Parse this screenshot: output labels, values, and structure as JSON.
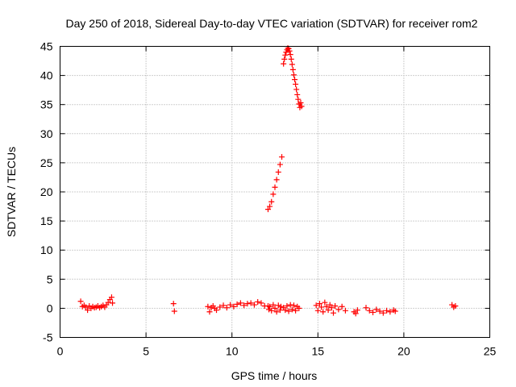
{
  "chart_data": {
    "type": "scatter",
    "title": "Day 250 of 2018, Sidereal Day-to-day VTEC variation (SDTVAR) for receiver rom2",
    "xlabel": "GPS time / hours",
    "ylabel": "SDTVAR / TECUs",
    "xlim": [
      0,
      25
    ],
    "ylim": [
      -5,
      45
    ],
    "xticks": [
      0,
      5,
      10,
      15,
      20,
      25
    ],
    "yticks": [
      -5,
      0,
      5,
      10,
      15,
      20,
      25,
      30,
      35,
      40,
      45
    ],
    "grid": true,
    "marker": "+",
    "series": [
      {
        "name": "SDTVAR",
        "color": "#ff0000",
        "x": [
          1.2,
          1.3,
          1.4,
          1.5,
          1.6,
          1.7,
          1.8,
          1.9,
          2.0,
          2.1,
          2.2,
          2.3,
          2.4,
          2.5,
          2.6,
          2.7,
          2.8,
          2.9,
          3.0,
          3.05,
          6.6,
          6.65,
          8.6,
          8.7,
          8.8,
          8.9,
          9.0,
          9.1,
          9.3,
          9.5,
          9.7,
          9.9,
          10.1,
          10.3,
          10.5,
          10.7,
          10.9,
          11.1,
          11.3,
          11.5,
          11.7,
          11.9,
          12.1,
          12.15,
          12.2,
          12.3,
          12.4,
          12.5,
          12.6,
          12.7,
          12.8,
          12.85,
          12.1,
          12.2,
          12.3,
          12.4,
          12.5,
          12.6,
          12.7,
          12.8,
          12.9,
          13.0,
          13.1,
          13.2,
          13.3,
          13.4,
          13.5,
          13.6,
          13.7,
          13.8,
          13.9,
          13.0,
          13.05,
          13.1,
          13.15,
          13.2,
          13.25,
          13.3,
          13.35,
          13.4,
          13.45,
          13.5,
          13.55,
          13.6,
          13.65,
          13.7,
          13.75,
          13.8,
          13.85,
          13.9,
          13.95,
          14.0,
          14.05,
          14.9,
          15.0,
          15.1,
          15.2,
          15.3,
          15.4,
          15.5,
          15.6,
          15.7,
          15.8,
          15.9,
          16.0,
          16.2,
          16.4,
          16.6,
          17.1,
          17.2,
          17.3,
          17.8,
          18.0,
          18.2,
          18.4,
          18.6,
          18.8,
          19.0,
          19.2,
          19.4,
          19.5,
          22.8,
          22.9,
          23.0
        ],
        "y": [
          1.2,
          0.3,
          0.5,
          0.2,
          -0.3,
          0.4,
          0.0,
          0.3,
          0.1,
          0.2,
          0.4,
          0.1,
          0.3,
          0.5,
          0.2,
          0.6,
          1.0,
          1.5,
          1.9,
          0.9,
          0.8,
          -0.5,
          0.3,
          -0.6,
          0.1,
          0.4,
          0.0,
          -0.3,
          0.2,
          0.5,
          0.1,
          0.6,
          0.3,
          0.7,
          0.9,
          0.5,
          0.8,
          0.9,
          0.6,
          1.1,
          0.9,
          0.4,
          0.4,
          -0.2,
          0.3,
          -0.4,
          0.6,
          0.0,
          -0.6,
          0.5,
          -0.3,
          0.3,
          17.0,
          17.5,
          18.3,
          19.6,
          20.8,
          22.1,
          23.4,
          24.7,
          26.0,
          0.1,
          -0.3,
          0.4,
          -0.5,
          0.6,
          -0.2,
          0.5,
          -0.4,
          0.3,
          0.0,
          42.0,
          42.8,
          43.5,
          44.0,
          44.4,
          44.7,
          44.6,
          44.2,
          43.6,
          42.8,
          41.9,
          41.0,
          40.1,
          39.3,
          38.5,
          37.6,
          36.7,
          35.9,
          35.1,
          34.5,
          35.3,
          34.7,
          0.5,
          -0.4,
          0.8,
          0.2,
          -0.6,
          1.0,
          0.3,
          -0.3,
          0.6,
          0.1,
          -0.8,
          0.4,
          -0.2,
          0.3,
          -0.4,
          -0.6,
          -0.9,
          -0.3,
          0.1,
          -0.4,
          -0.7,
          -0.2,
          -0.5,
          -0.8,
          -0.4,
          -0.6,
          -0.3,
          -0.5,
          0.6,
          0.2,
          0.4
        ]
      }
    ]
  }
}
